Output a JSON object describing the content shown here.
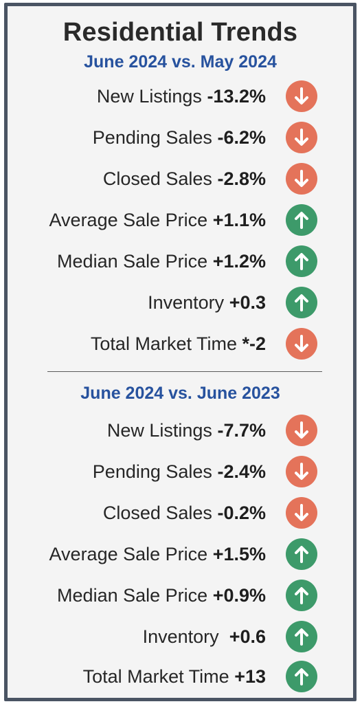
{
  "title": "Residential Trends",
  "sections": [
    {
      "heading": "June 2024 vs. May 2024",
      "rows": [
        {
          "label": "New Listings",
          "value": "-13.2%",
          "direction": "down"
        },
        {
          "label": "Pending Sales",
          "value": "-6.2%",
          "direction": "down"
        },
        {
          "label": "Closed Sales",
          "value": "-2.8%",
          "direction": "down"
        },
        {
          "label": "Average Sale Price",
          "value": "+1.1%",
          "direction": "up"
        },
        {
          "label": "Median Sale Price",
          "value": "+1.2%",
          "direction": "up"
        },
        {
          "label": "Inventory",
          "value": "+0.3",
          "direction": "up"
        },
        {
          "label": "Total Market Time",
          "value": "*-2",
          "direction": "down"
        }
      ]
    },
    {
      "heading": "June 2024 vs. June 2023",
      "rows": [
        {
          "label": "New Listings",
          "value": "-7.7%",
          "direction": "down"
        },
        {
          "label": "Pending Sales",
          "value": "-2.4%",
          "direction": "down"
        },
        {
          "label": "Closed Sales",
          "value": "-0.2%",
          "direction": "down"
        },
        {
          "label": "Average Sale Price",
          "value": "+1.5%",
          "direction": "up"
        },
        {
          "label": "Median Sale Price",
          "value": "+0.9%",
          "direction": "up"
        },
        {
          "label": "Inventory ",
          "value": "+0.6",
          "direction": "up"
        },
        {
          "label": "Total Market Time",
          "value": "+13",
          "direction": "up"
        }
      ]
    }
  ],
  "colors": {
    "down": "#e4735a",
    "up": "#3d9a6a",
    "heading": "#27529e",
    "border": "#4a5463"
  },
  "icons": {
    "down": "arrow-down-icon",
    "up": "arrow-up-icon"
  }
}
